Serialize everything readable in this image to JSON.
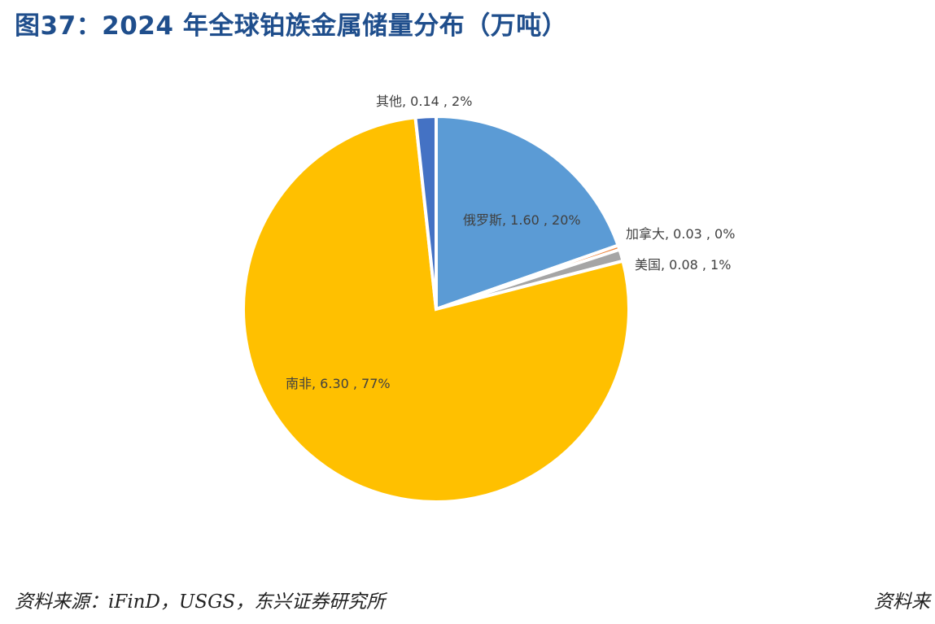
{
  "header": {
    "title": "图37：2024 年全球铂族金属储量分布（万吨）"
  },
  "chart_data": {
    "type": "pie",
    "title": "",
    "slices": [
      {
        "name": "俄罗斯",
        "value": 1.6,
        "percent": "20%",
        "label": "俄罗斯, 1.60 , 20%",
        "color": "#5B9BD5"
      },
      {
        "name": "加拿大",
        "value": 0.03,
        "percent": "0%",
        "label": "加拿大, 0.03 , 0%",
        "color": "#ED7D31"
      },
      {
        "name": "美国",
        "value": 0.08,
        "percent": "1%",
        "label": "美国, 0.08 , 1%",
        "color": "#A5A5A5"
      },
      {
        "name": "南非",
        "value": 6.3,
        "percent": "77%",
        "label": "南非, 6.30 , 77%",
        "color": "#FFC000"
      },
      {
        "name": "其他",
        "value": 0.14,
        "percent": "2%",
        "label": "其他, 0.14 , 2%",
        "color": "#4472C4"
      }
    ],
    "legend": "none",
    "start_angle": "12 o'clock",
    "direction": "clockwise"
  },
  "footer": {
    "source": "资料来源：iFinD，USGS，东兴证券研究所",
    "right_text": "资料来"
  }
}
